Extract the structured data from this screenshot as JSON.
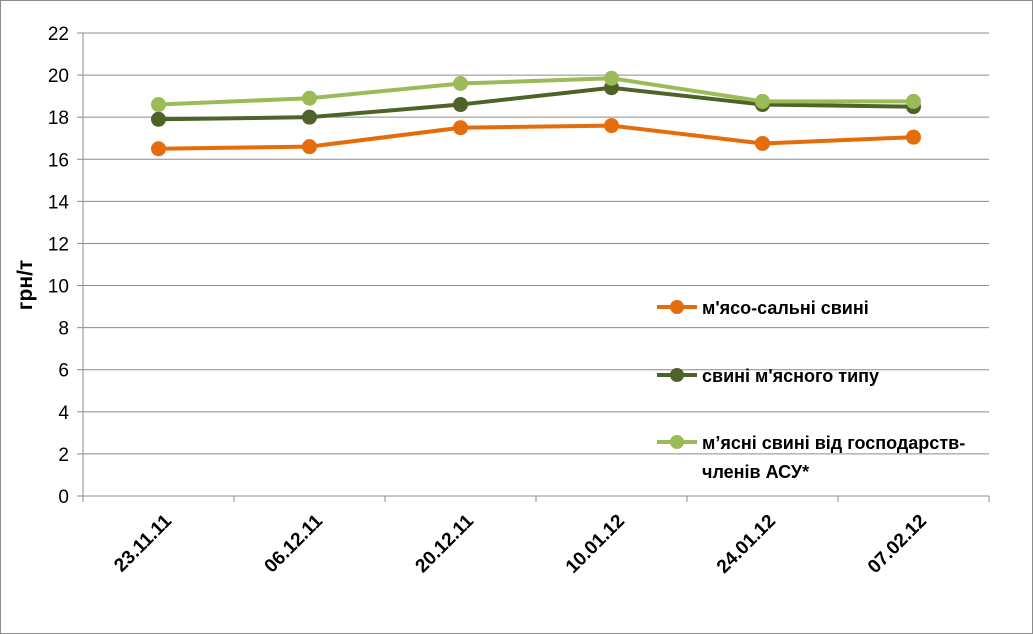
{
  "chart_data": {
    "type": "line",
    "title": "",
    "xlabel": "",
    "ylabel": "грн/т",
    "ylim": [
      0,
      22
    ],
    "ytick_step": 2,
    "grid": "horizontal",
    "legend_position": "right",
    "x": [
      "23.11.11",
      "06.12.11",
      "20.12.11",
      "10.01.12",
      "24.01.12",
      "07.02.12"
    ],
    "series": [
      {
        "name": "м'ясо-сальні свині",
        "color": "#e46c0a",
        "values": [
          16.5,
          16.6,
          17.5,
          17.6,
          16.75,
          17.05
        ]
      },
      {
        "name": "свині м'ясного типу",
        "color": "#4f6228",
        "values": [
          17.9,
          18.0,
          18.6,
          19.4,
          18.6,
          18.5
        ]
      },
      {
        "name_lines": [
          "м’ясні свині від господарств-",
          "членів АСУ*"
        ],
        "color": "#9bbb59",
        "values": [
          18.6,
          18.9,
          19.6,
          19.85,
          18.75,
          18.75
        ]
      }
    ]
  }
}
